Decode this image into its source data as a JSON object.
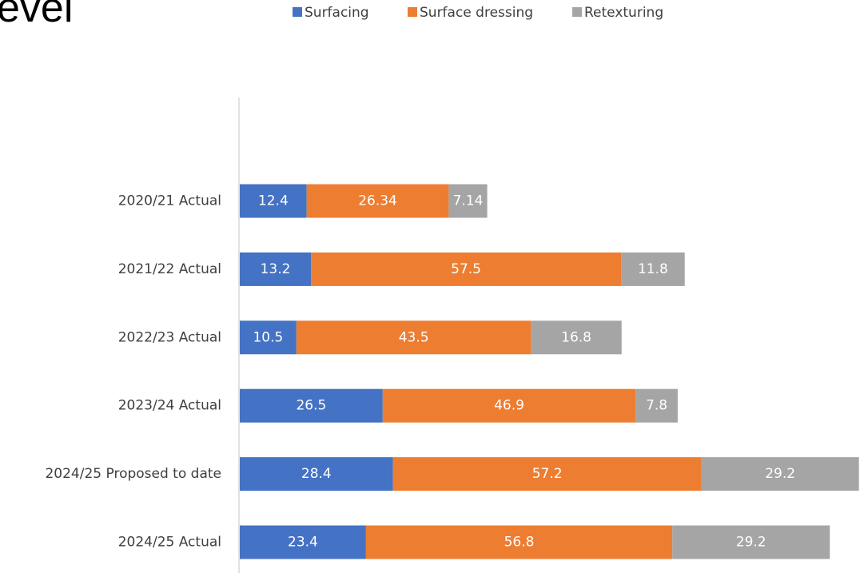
{
  "title_fragment": "evel",
  "chart_data": {
    "type": "bar",
    "orientation": "horizontal",
    "stacked": true,
    "categories": [
      "2020/21 Actual",
      "2021/22 Actual",
      "2022/23 Actual",
      "2023/24 Actual",
      "2024/25 Proposed to date",
      "2024/25 Actual"
    ],
    "series": [
      {
        "name": "Surfacing",
        "color": "#4472C4",
        "values": [
          12.4,
          13.2,
          10.5,
          26.5,
          28.4,
          23.4
        ]
      },
      {
        "name": "Surface dressing",
        "color": "#ED7D31",
        "values": [
          26.34,
          57.5,
          43.5,
          46.9,
          57.2,
          56.8
        ]
      },
      {
        "name": "Retexturing",
        "color": "#A5A5A5",
        "values": [
          7.14,
          11.8,
          16.8,
          7.8,
          29.2,
          29.2
        ]
      }
    ],
    "data_labels": [
      [
        "12.4",
        "13.2",
        "10.5",
        "26.5",
        "28.4",
        "23.4"
      ],
      [
        "26.34",
        "57.5",
        "43.5",
        "46.9",
        "57.2",
        "56.8"
      ],
      [
        "7.14",
        "11.8",
        "16.8",
        "7.8",
        "29.2",
        "29.2"
      ]
    ],
    "legend_position": "top",
    "grid": false,
    "xlim": [
      0,
      115
    ]
  }
}
